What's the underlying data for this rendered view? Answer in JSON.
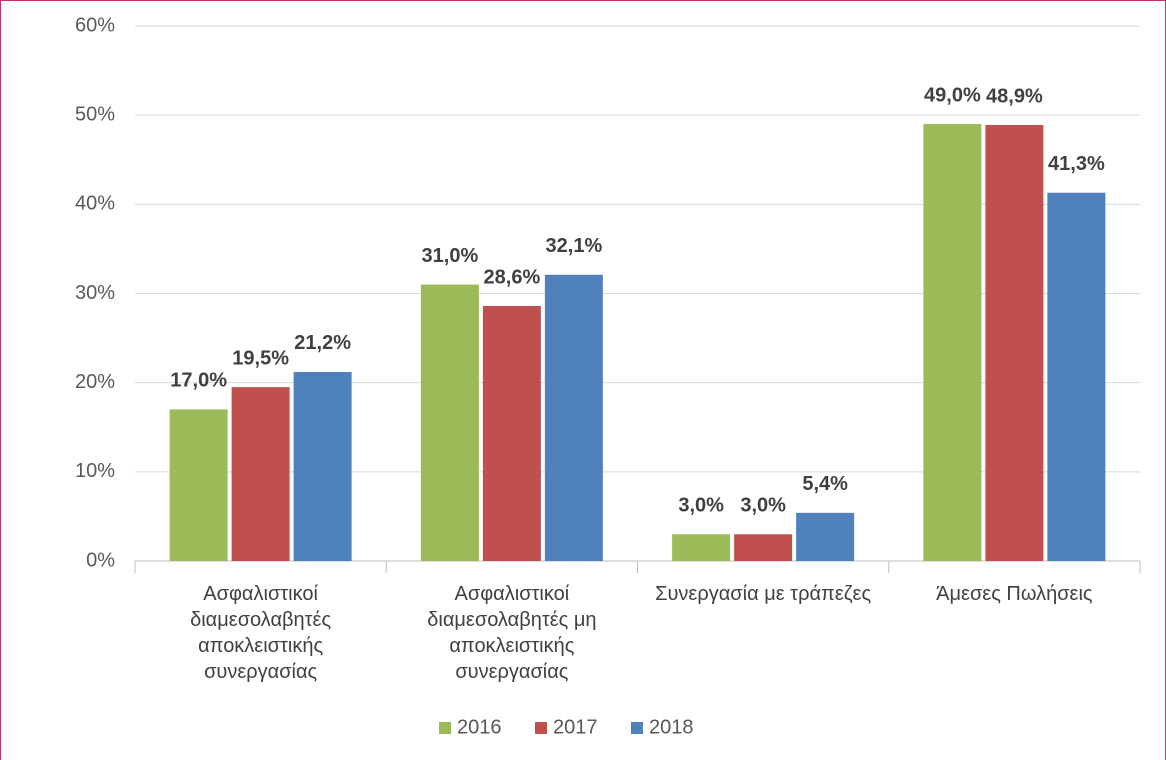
{
  "chart_data": {
    "type": "bar",
    "categories": [
      "Ασφαλιστικοί διαμεσολαβητές αποκλειστικής συνεργασίας",
      "Ασφαλιστικοί διαμεσολαβητές μη αποκλειστικής συνεργασίας",
      "Συνεργασία με τράπεζες",
      "Άμεσες Πωλήσεις"
    ],
    "series": [
      {
        "name": "2016",
        "color": "#9bbb59",
        "values": [
          17.0,
          31.0,
          3.0,
          49.0
        ],
        "value_labels": [
          "17,0%",
          "31,0%",
          "3,0%",
          "49,0%"
        ]
      },
      {
        "name": "2017",
        "color": "#c0504d",
        "values": [
          19.5,
          28.6,
          3.0,
          48.9
        ],
        "value_labels": [
          "19,5%",
          "28,6%",
          "3,0%",
          "48,9%"
        ]
      },
      {
        "name": "2018",
        "color": "#4f81bd",
        "values": [
          21.2,
          32.1,
          5.4,
          41.3
        ],
        "value_labels": [
          "21,2%",
          "32,1%",
          "5,4%",
          "41,3%"
        ]
      }
    ],
    "ylim": [
      0,
      60
    ],
    "yticks": [
      {
        "value": 0,
        "label": "0%"
      },
      {
        "value": 10,
        "label": "10%"
      },
      {
        "value": 20,
        "label": "20%"
      },
      {
        "value": 30,
        "label": "30%"
      },
      {
        "value": 40,
        "label": "40%"
      },
      {
        "value": 50,
        "label": "50%"
      },
      {
        "value": 60,
        "label": "60%"
      }
    ],
    "grid": true,
    "legend": "bottom"
  }
}
